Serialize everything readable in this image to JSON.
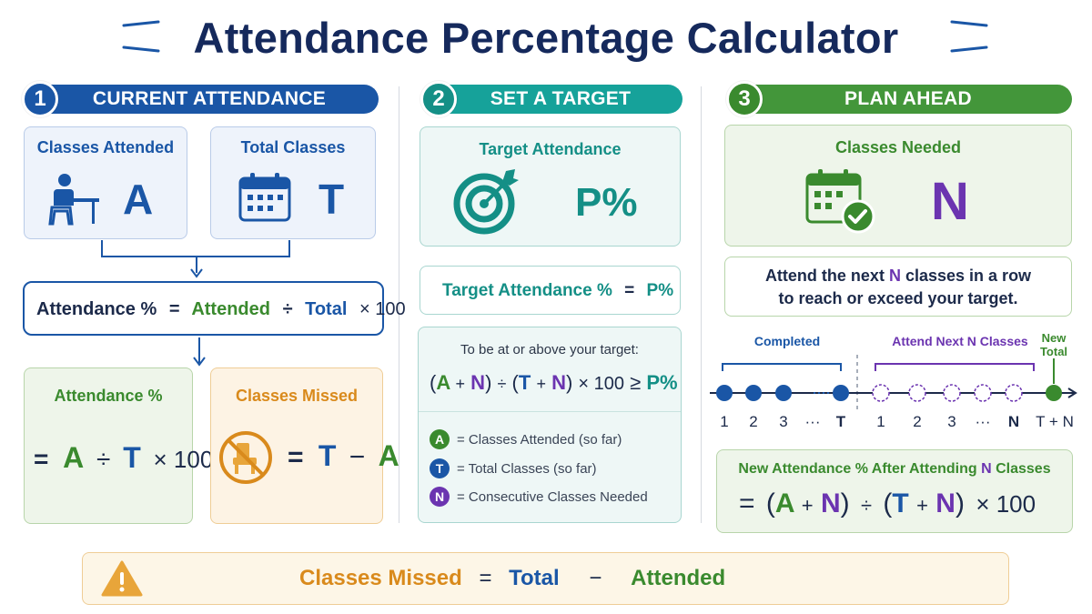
{
  "title": "Attendance Percentage Calculator",
  "colors": {
    "blue": "#1a56a6",
    "teal": "#148f86",
    "green": "#3a8a2e",
    "orange": "#d98a1c",
    "purple": "#6b34b0",
    "navy": "#15295c"
  },
  "sections": [
    {
      "number": "1",
      "label": "CURRENT ATTENDANCE"
    },
    {
      "number": "2",
      "label": "SET A TARGET"
    },
    {
      "number": "3",
      "label": "PLAN AHEAD"
    }
  ],
  "current": {
    "attended_label": "Classes Attended",
    "attended_symbol": "A",
    "attended_icon": "student-at-desk-icon",
    "total_label": "Total Classes",
    "total_symbol": "T",
    "total_icon": "calendar-icon",
    "formula": {
      "lhs": "Attendance %",
      "eq": "=",
      "a": "Attended",
      "div": "÷",
      "t": "Total",
      "mul": "× 100"
    },
    "pct_card": {
      "label": "Attendance %",
      "eq": "=",
      "a": "A",
      "div": "÷",
      "t": "T",
      "mul": "× 100"
    },
    "missed_card": {
      "label": "Classes Missed",
      "icon": "no-chair-icon",
      "eq": "=",
      "t": "T",
      "minus": "−",
      "a": "A"
    }
  },
  "target": {
    "label": "Target Attendance",
    "symbol": "P%",
    "icon": "target-icon",
    "formula": {
      "lhs": "Target Attendance %",
      "eq": "=",
      "rhs": "P%"
    },
    "condition_text": "To be at or above your target:",
    "condition": {
      "open1": "(",
      "a": "A",
      "plus1": "+",
      "n1": "N",
      "close1": ")",
      "div": "÷",
      "open2": "(",
      "t": "T",
      "plus2": "+",
      "n2": "N",
      "close2": ")",
      "mul": "× 100",
      "ge": "≥",
      "p": "P%"
    },
    "legend": [
      {
        "chip": "A",
        "text": "= Classes Attended (so far)"
      },
      {
        "chip": "T",
        "text": "= Total Classes (so far)"
      },
      {
        "chip": "N",
        "text": "= Consecutive Classes Needed"
      }
    ]
  },
  "plan": {
    "needed_label": "Classes Needed",
    "needed_symbol": "N",
    "needed_icon": "calendar-check-icon",
    "advice_line1_a": "Attend the next",
    "advice_line1_n": "N",
    "advice_line1_b": "classes in a row",
    "advice_line2": "to reach or exceed your target.",
    "timeline": {
      "completed_label": "Completed",
      "next_label": "Attend Next N Classes",
      "new_total_line1": "New",
      "new_total_line2": "Total",
      "ticks": [
        "1",
        "2",
        "3",
        "···",
        "T",
        "1",
        "2",
        "3",
        "···",
        "N",
        "T + N"
      ]
    },
    "new_card": {
      "label_a": "New Attendance % After Attending",
      "label_n": "N",
      "label_b": "Classes",
      "eq": "=",
      "open1": "(",
      "a": "A",
      "plus1": "+",
      "n1": "N",
      "close1": ")",
      "div": "÷",
      "open2": "(",
      "t": "T",
      "plus2": "+",
      "n2": "N",
      "close2": ")",
      "mul": "× 100"
    }
  },
  "bottom": {
    "icon": "warning-icon",
    "missed": "Classes Missed",
    "eq": "=",
    "total": "Total",
    "minus": "−",
    "attended": "Attended"
  }
}
